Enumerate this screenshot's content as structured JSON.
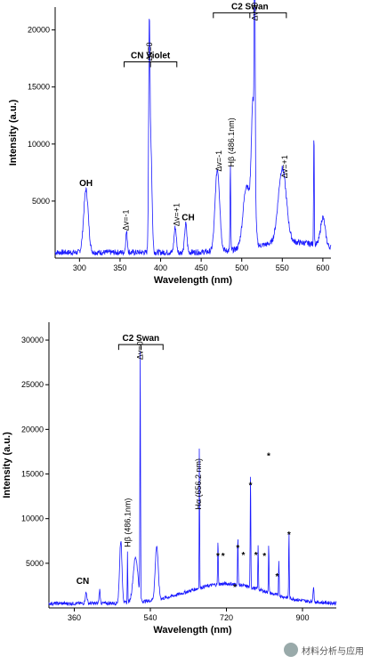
{
  "chart_data": [
    {
      "type": "line",
      "xlabel": "Wavelength (nm)",
      "ylabel": "Intensity (a.u.)",
      "xlim": [
        270,
        610
      ],
      "ylim": [
        0,
        22000
      ],
      "xticks": [
        300,
        350,
        400,
        450,
        500,
        550,
        600
      ],
      "yticks": [
        5000,
        10000,
        15000,
        20000
      ],
      "series_color": "#1a1aff",
      "baseline": 500,
      "peaks": [
        {
          "x": 308,
          "y": 5500,
          "w": 4
        },
        {
          "x": 358,
          "y": 1800,
          "w": 1.5
        },
        {
          "x": 386,
          "y": 17000,
          "w": 1.2
        },
        {
          "x": 388,
          "y": 9000,
          "w": 2
        },
        {
          "x": 418,
          "y": 2200,
          "w": 2
        },
        {
          "x": 431,
          "y": 2500,
          "w": 2
        },
        {
          "x": 470,
          "y": 7200,
          "w": 4
        },
        {
          "x": 486,
          "y": 7500,
          "w": 0.6
        },
        {
          "x": 506,
          "y": 5500,
          "w": 6
        },
        {
          "x": 516,
          "y": 20500,
          "w": 0.8
        },
        {
          "x": 514,
          "y": 12000,
          "w": 3
        },
        {
          "x": 550,
          "y": 6500,
          "w": 7
        },
        {
          "x": 589,
          "y": 10000,
          "w": 0.6
        },
        {
          "x": 600,
          "y": 2500,
          "w": 4
        }
      ],
      "annotations": [
        {
          "text": "OH",
          "x": 308,
          "y": 6300,
          "style": "bold"
        },
        {
          "text": "Δv=-1",
          "x": 357,
          "y": 2400,
          "style": "rot"
        },
        {
          "text": "Δv=0",
          "x": 386,
          "y": 17300,
          "style": "rot"
        },
        {
          "text": "Δv=+1",
          "x": 420,
          "y": 2800,
          "style": "rot"
        },
        {
          "text": "CH",
          "x": 434,
          "y": 3300,
          "style": "bold"
        },
        {
          "text": "Δv=-1",
          "x": 472,
          "y": 7600,
          "style": "rot"
        },
        {
          "text": "Hβ (486.1nm)",
          "x": 487,
          "y": 8000,
          "style": "rot"
        },
        {
          "text": "Δv=0",
          "x": 516,
          "y": 20800,
          "style": "rot"
        },
        {
          "text": "Δv=+1",
          "x": 553,
          "y": 7000,
          "style": "rot"
        }
      ],
      "brackets": [
        {
          "label": "CN Violet",
          "x1": 355,
          "x2": 420,
          "y": 17200
        },
        {
          "label": "C2 Swan",
          "x1": 465,
          "x2": 555,
          "y": 21500
        }
      ]
    },
    {
      "type": "line",
      "xlabel": "Wavelength (nm)",
      "ylabel": "Intensity (a.u.)",
      "xlim": [
        300,
        980
      ],
      "ylim": [
        0,
        32000
      ],
      "xticks": [
        360,
        540,
        720,
        900
      ],
      "yticks": [
        5000,
        10000,
        15000,
        20000,
        25000,
        30000
      ],
      "series_color": "#1a1aff",
      "baseline": 500,
      "peaks": [
        {
          "x": 388,
          "y": 1200,
          "w": 3
        },
        {
          "x": 420,
          "y": 1500,
          "w": 2
        },
        {
          "x": 470,
          "y": 7000,
          "w": 4
        },
        {
          "x": 486,
          "y": 6000,
          "w": 0.8
        },
        {
          "x": 505,
          "y": 5000,
          "w": 8
        },
        {
          "x": 516,
          "y": 27500,
          "w": 1.0
        },
        {
          "x": 555,
          "y": 6000,
          "w": 5
        },
        {
          "x": 656,
          "y": 16000,
          "w": 0.8
        },
        {
          "x": 700,
          "y": 5000,
          "w": 1
        },
        {
          "x": 747,
          "y": 5500,
          "w": 1
        },
        {
          "x": 777,
          "y": 13000,
          "w": 1
        },
        {
          "x": 795,
          "y": 5000,
          "w": 1
        },
        {
          "x": 820,
          "y": 5500,
          "w": 1
        },
        {
          "x": 844,
          "y": 4000,
          "w": 1
        },
        {
          "x": 868,
          "y": 7500,
          "w": 1
        },
        {
          "x": 926,
          "y": 1500,
          "w": 2
        }
      ],
      "annotations": [
        {
          "text": "CN",
          "x": 380,
          "y": 2700,
          "style": "bold"
        },
        {
          "text": "Hβ (486.1nm)",
          "x": 486,
          "y": 6800,
          "style": "rot"
        },
        {
          "text": "Δv=0",
          "x": 516,
          "y": 27800,
          "style": "rot"
        },
        {
          "text": "Hα (656.2 nm)",
          "x": 654,
          "y": 11000,
          "style": "rot"
        },
        {
          "text": "*",
          "x": 700,
          "y": 5500,
          "style": "star"
        },
        {
          "text": "*",
          "x": 712,
          "y": 5500,
          "style": "star"
        },
        {
          "text": "*",
          "x": 740,
          "y": 2000,
          "style": "star"
        },
        {
          "text": "*",
          "x": 747,
          "y": 6400,
          "style": "star"
        },
        {
          "text": "*",
          "x": 760,
          "y": 5600,
          "style": "star"
        },
        {
          "text": "*",
          "x": 777,
          "y": 13400,
          "style": "star"
        },
        {
          "text": "*",
          "x": 790,
          "y": 5600,
          "style": "star"
        },
        {
          "text": "*",
          "x": 810,
          "y": 5500,
          "style": "star"
        },
        {
          "text": "*",
          "x": 840,
          "y": 3200,
          "style": "star"
        },
        {
          "text": "*",
          "x": 868,
          "y": 7900,
          "style": "star"
        },
        {
          "text": "*",
          "x": 820,
          "y": 16700,
          "style": "star"
        }
      ],
      "brackets": [
        {
          "label": "C2 Swan",
          "x1": 465,
          "x2": 570,
          "y": 29500
        }
      ]
    }
  ],
  "watermark": {
    "text": "材料分析与应用",
    "icon": "wechat-icon"
  }
}
